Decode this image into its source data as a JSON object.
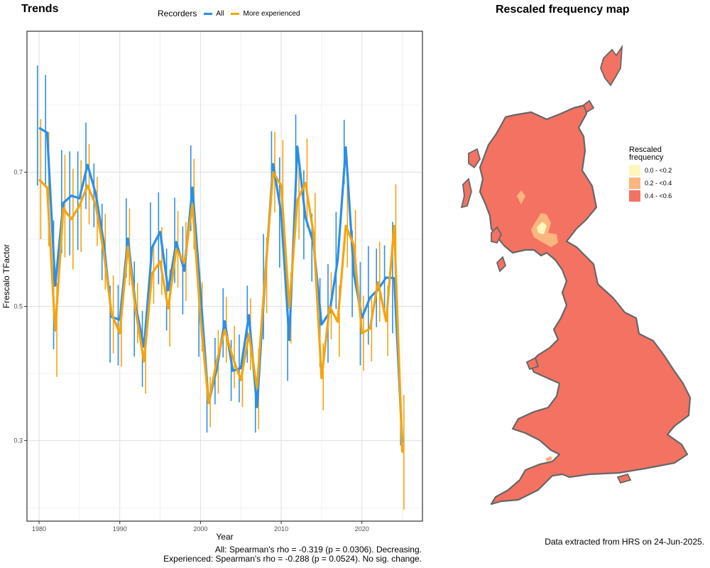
{
  "panels": {
    "left_title": "Trends",
    "map_title": "Rescaled frequency map"
  },
  "legend": {
    "title": "Recorders",
    "items": [
      {
        "label": "All",
        "color": "#2b8fe8"
      },
      {
        "label": "More experienced",
        "color": "#f5a40f"
      }
    ]
  },
  "chart_data": {
    "type": "line",
    "xlabel": "Year",
    "ylabel": "Frescalo TFactor",
    "xlim": [
      1978.5,
      2027.5
    ],
    "ylim": [
      0.18,
      0.91
    ],
    "xticks": [
      1980,
      1990,
      2000,
      2010,
      2020
    ],
    "yticks": [
      0.3,
      0.5,
      0.7
    ],
    "ytick_labels": [
      "0.3",
      "0.5",
      "0.7"
    ],
    "grid": true,
    "legend_position": "top",
    "series": [
      {
        "name": "All",
        "color": "#2b8fe8",
        "x": [
          1980,
          1981,
          1982,
          1983,
          1984,
          1985,
          1986,
          1987,
          1988,
          1989,
          1990,
          1991,
          1992,
          1993,
          1994,
          1995,
          1996,
          1997,
          1998,
          1999,
          2000,
          2001,
          2002,
          2003,
          2004,
          2005,
          2006,
          2007,
          2008,
          2009,
          2010,
          2011,
          2012,
          2013,
          2014,
          2015,
          2016,
          2017,
          2018,
          2019,
          2020,
          2021,
          2022,
          2023,
          2024,
          2025
        ],
        "y": [
          0.766,
          0.759,
          0.531,
          0.654,
          0.665,
          0.661,
          0.711,
          0.669,
          0.596,
          0.484,
          0.48,
          0.601,
          0.498,
          0.44,
          0.588,
          0.611,
          0.524,
          0.596,
          0.553,
          0.677,
          0.521,
          0.356,
          0.406,
          0.478,
          0.404,
          0.408,
          0.487,
          0.35,
          0.541,
          0.712,
          0.638,
          0.45,
          0.738,
          0.633,
          0.594,
          0.473,
          0.491,
          0.569,
          0.737,
          0.548,
          0.483,
          0.513,
          0.525,
          0.543,
          0.542,
          0.297
        ],
        "lower": [
          0.68,
          0.677,
          0.436,
          0.579,
          0.576,
          0.584,
          0.645,
          0.618,
          0.539,
          0.416,
          0.412,
          0.543,
          0.425,
          0.38,
          0.519,
          0.533,
          0.464,
          0.535,
          0.488,
          0.612,
          0.425,
          0.312,
          0.354,
          0.424,
          0.359,
          0.357,
          0.416,
          0.312,
          0.451,
          0.658,
          0.558,
          0.389,
          0.685,
          0.57,
          0.537,
          0.41,
          0.416,
          0.496,
          0.682,
          0.484,
          0.412,
          0.443,
          0.469,
          0.493,
          0.46,
          0.293
        ],
        "upper": [
          0.859,
          0.845,
          0.628,
          0.733,
          0.731,
          0.731,
          0.774,
          0.713,
          0.653,
          0.531,
          0.532,
          0.661,
          0.567,
          0.493,
          0.655,
          0.67,
          0.586,
          0.662,
          0.619,
          0.74,
          0.56,
          0.4,
          0.453,
          0.527,
          0.45,
          0.458,
          0.531,
          0.388,
          0.608,
          0.761,
          0.722,
          0.51,
          0.786,
          0.703,
          0.638,
          0.542,
          0.563,
          0.641,
          0.778,
          0.613,
          0.566,
          0.59,
          0.586,
          0.591,
          0.626,
          0.368
        ]
      },
      {
        "name": "More experienced",
        "color": "#f5a40f",
        "x": [
          1980,
          1981,
          1982,
          1983,
          1984,
          1985,
          1986,
          1987,
          1988,
          1989,
          1990,
          1991,
          1992,
          1993,
          1994,
          1995,
          1996,
          1997,
          1998,
          1999,
          2000,
          2001,
          2002,
          2003,
          2004,
          2005,
          2006,
          2007,
          2008,
          2009,
          2010,
          2011,
          2012,
          2013,
          2014,
          2015,
          2016,
          2017,
          2018,
          2019,
          2020,
          2021,
          2022,
          2023,
          2024,
          2025
        ],
        "y": [
          0.689,
          0.677,
          0.464,
          0.646,
          0.63,
          0.65,
          0.68,
          0.652,
          0.581,
          0.488,
          0.46,
          0.589,
          0.491,
          0.418,
          0.549,
          0.567,
          0.497,
          0.585,
          0.565,
          0.652,
          0.483,
          0.356,
          0.418,
          0.465,
          0.424,
          0.39,
          0.459,
          0.378,
          0.546,
          0.7,
          0.68,
          0.498,
          0.658,
          0.684,
          0.609,
          0.393,
          0.5,
          0.477,
          0.62,
          0.591,
          0.46,
          0.467,
          0.536,
          0.478,
          0.62,
          0.282
        ],
        "lower": [
          0.6,
          0.59,
          0.395,
          0.573,
          0.555,
          0.581,
          0.622,
          0.59,
          0.525,
          0.43,
          0.41,
          0.531,
          0.445,
          0.37,
          0.504,
          0.517,
          0.44,
          0.528,
          0.508,
          0.585,
          0.433,
          0.32,
          0.37,
          0.416,
          0.378,
          0.35,
          0.405,
          0.317,
          0.49,
          0.64,
          0.603,
          0.445,
          0.6,
          0.618,
          0.55,
          0.345,
          0.451,
          0.425,
          0.558,
          0.538,
          0.404,
          0.418,
          0.477,
          0.426,
          0.551,
          0.197
        ],
        "upper": [
          0.779,
          0.76,
          0.535,
          0.726,
          0.705,
          0.718,
          0.742,
          0.693,
          0.638,
          0.546,
          0.512,
          0.646,
          0.535,
          0.47,
          0.595,
          0.618,
          0.555,
          0.642,
          0.626,
          0.72,
          0.536,
          0.395,
          0.465,
          0.514,
          0.471,
          0.432,
          0.512,
          0.437,
          0.603,
          0.76,
          0.748,
          0.55,
          0.719,
          0.75,
          0.669,
          0.445,
          0.551,
          0.531,
          0.683,
          0.644,
          0.516,
          0.517,
          0.596,
          0.531,
          0.682,
          0.368
        ]
      }
    ]
  },
  "footer": {
    "all_stat": "All: Spearman's rho = -0.319 (p = 0.0306). Decreasing.",
    "exp_stat": "Experienced: Spearman's rho = -0.288 (p = 0.0524). No sig. change.",
    "source": "Data extracted from HRS on 24-Jun-2025."
  },
  "map": {
    "legend_title": "Rescaled\nfrequency",
    "legend_title_line1": "Rescaled",
    "legend_title_line2": "frequency",
    "classes": [
      {
        "label": "0.0 - <0.2",
        "color": "#fff6bf"
      },
      {
        "label": "0.2 - <0.4",
        "color": "#fbb57f"
      },
      {
        "label": "0.4 - <0.6",
        "color": "#f47262"
      }
    ],
    "outline_color": "#666666"
  }
}
